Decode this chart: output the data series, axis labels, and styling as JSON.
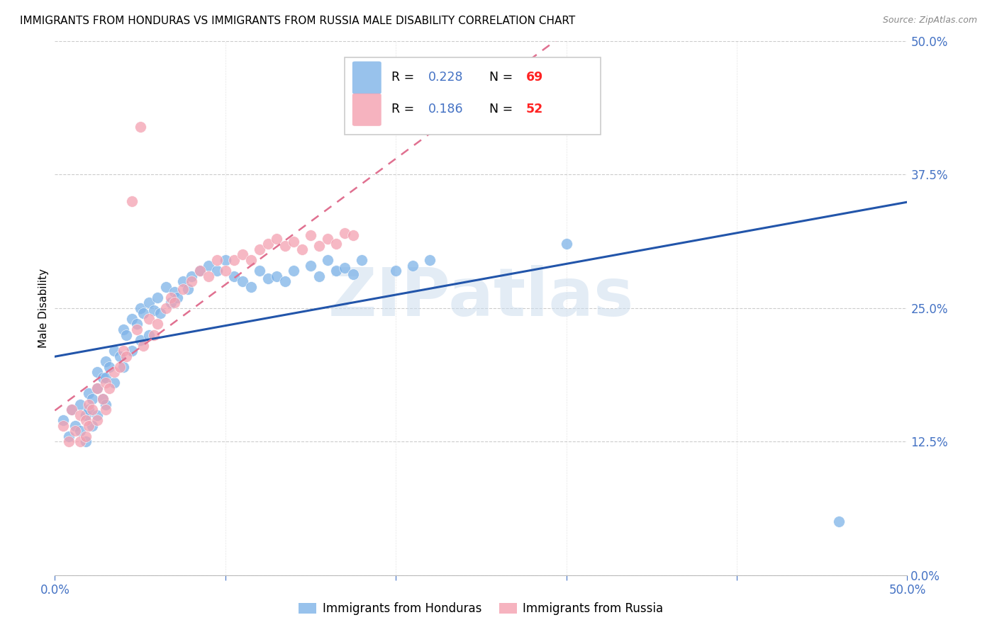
{
  "title": "IMMIGRANTS FROM HONDURAS VS IMMIGRANTS FROM RUSSIA MALE DISABILITY CORRELATION CHART",
  "source": "Source: ZipAtlas.com",
  "ylabel": "Male Disability",
  "xmin": 0.0,
  "xmax": 0.5,
  "ymin": 0.0,
  "ymax": 0.5,
  "honduras_color": "#7EB3E8",
  "russia_color": "#F4A0B0",
  "honduras_line_color": "#2255AA",
  "russia_line_color": "#E07090",
  "honduras_R": "0.228",
  "honduras_N": "69",
  "russia_R": "0.186",
  "russia_N": "52",
  "R_color": "#4472c4",
  "N_color": "#ff2222",
  "background_color": "#ffffff",
  "grid_color": "#cccccc",
  "tick_color": "#4472c4",
  "legend_border_color": "#cccccc",
  "watermark": "ZIPatlas",
  "watermark_color": "#ccddee",
  "legend_label1": "Immigrants from Honduras",
  "legend_label2": "Immigrants from Russia",
  "ytick_positions": [
    0.0,
    0.125,
    0.25,
    0.375,
    0.5
  ],
  "ytick_labels": [
    "0.0%",
    "12.5%",
    "25.0%",
    "37.5%",
    "50.0%"
  ],
  "xtick_positions": [
    0.0,
    0.5
  ],
  "xtick_labels": [
    "0.0%",
    "50.0%"
  ],
  "honduras_x": [
    0.005,
    0.008,
    0.01,
    0.012,
    0.015,
    0.015,
    0.018,
    0.018,
    0.02,
    0.02,
    0.022,
    0.022,
    0.025,
    0.025,
    0.025,
    0.028,
    0.028,
    0.03,
    0.03,
    0.03,
    0.032,
    0.035,
    0.035,
    0.038,
    0.04,
    0.04,
    0.042,
    0.045,
    0.045,
    0.048,
    0.05,
    0.05,
    0.052,
    0.055,
    0.055,
    0.058,
    0.06,
    0.062,
    0.065,
    0.068,
    0.07,
    0.072,
    0.075,
    0.078,
    0.08,
    0.085,
    0.09,
    0.095,
    0.1,
    0.105,
    0.11,
    0.115,
    0.12,
    0.125,
    0.13,
    0.135,
    0.14,
    0.15,
    0.155,
    0.16,
    0.165,
    0.17,
    0.175,
    0.18,
    0.2,
    0.21,
    0.22,
    0.3,
    0.46
  ],
  "honduras_y": [
    0.145,
    0.13,
    0.155,
    0.14,
    0.16,
    0.135,
    0.15,
    0.125,
    0.17,
    0.155,
    0.165,
    0.14,
    0.19,
    0.175,
    0.15,
    0.185,
    0.165,
    0.2,
    0.185,
    0.16,
    0.195,
    0.21,
    0.18,
    0.205,
    0.23,
    0.195,
    0.225,
    0.24,
    0.21,
    0.235,
    0.25,
    0.22,
    0.245,
    0.255,
    0.225,
    0.248,
    0.26,
    0.245,
    0.27,
    0.255,
    0.265,
    0.26,
    0.275,
    0.268,
    0.28,
    0.285,
    0.29,
    0.285,
    0.295,
    0.28,
    0.275,
    0.27,
    0.285,
    0.278,
    0.28,
    0.275,
    0.285,
    0.29,
    0.28,
    0.295,
    0.285,
    0.288,
    0.282,
    0.295,
    0.285,
    0.29,
    0.295,
    0.31,
    0.05
  ],
  "russia_x": [
    0.005,
    0.008,
    0.01,
    0.012,
    0.015,
    0.015,
    0.018,
    0.018,
    0.02,
    0.02,
    0.022,
    0.025,
    0.025,
    0.028,
    0.03,
    0.03,
    0.032,
    0.035,
    0.038,
    0.04,
    0.042,
    0.045,
    0.048,
    0.05,
    0.052,
    0.055,
    0.058,
    0.06,
    0.065,
    0.068,
    0.07,
    0.075,
    0.08,
    0.085,
    0.09,
    0.095,
    0.1,
    0.105,
    0.11,
    0.115,
    0.12,
    0.125,
    0.13,
    0.135,
    0.14,
    0.145,
    0.15,
    0.155,
    0.16,
    0.165,
    0.17,
    0.175
  ],
  "russia_y": [
    0.14,
    0.125,
    0.155,
    0.135,
    0.15,
    0.125,
    0.145,
    0.13,
    0.16,
    0.14,
    0.155,
    0.175,
    0.145,
    0.165,
    0.18,
    0.155,
    0.175,
    0.19,
    0.195,
    0.21,
    0.205,
    0.35,
    0.23,
    0.42,
    0.215,
    0.24,
    0.225,
    0.235,
    0.25,
    0.26,
    0.255,
    0.268,
    0.275,
    0.285,
    0.28,
    0.295,
    0.285,
    0.295,
    0.3,
    0.295,
    0.305,
    0.31,
    0.315,
    0.308,
    0.312,
    0.305,
    0.318,
    0.308,
    0.315,
    0.31,
    0.32,
    0.318
  ]
}
